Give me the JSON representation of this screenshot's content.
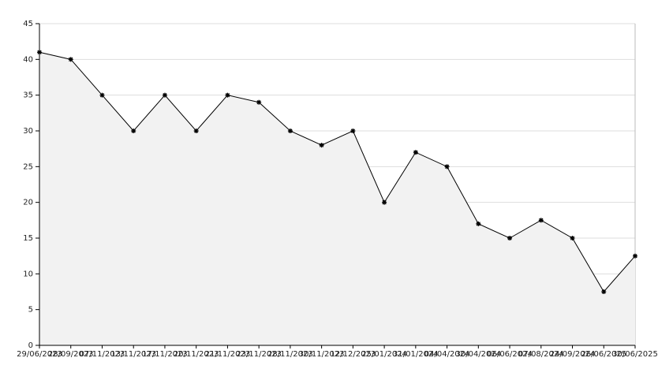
{
  "chart_data": {
    "type": "area",
    "categories": [
      "29/06/2023",
      "28/09/2023",
      "07/11/2023",
      "13/11/2023",
      "17/11/2023",
      "20/11/2023",
      "21/11/2023",
      "23/11/2023",
      "28/11/2023",
      "30/11/2023",
      "12/12/2023",
      "25/01/2024",
      "31/01/2024",
      "04/04/2024",
      "30/04/2024",
      "06/06/2024",
      "07/08/2024",
      "24/09/2024",
      "26/06/2025",
      "30/06/2025"
    ],
    "values": [
      41,
      40,
      35,
      30,
      35,
      30,
      35,
      34,
      30,
      28,
      30,
      20,
      27,
      25,
      17,
      15,
      17.5,
      15,
      7.5,
      12.5
    ],
    "color": "#000000",
    "fill": "#f2f2f2",
    "ylim": [
      0,
      45
    ],
    "yticks": [
      0,
      5,
      10,
      15,
      20,
      25,
      30,
      35,
      40,
      45
    ],
    "grid": true
  }
}
